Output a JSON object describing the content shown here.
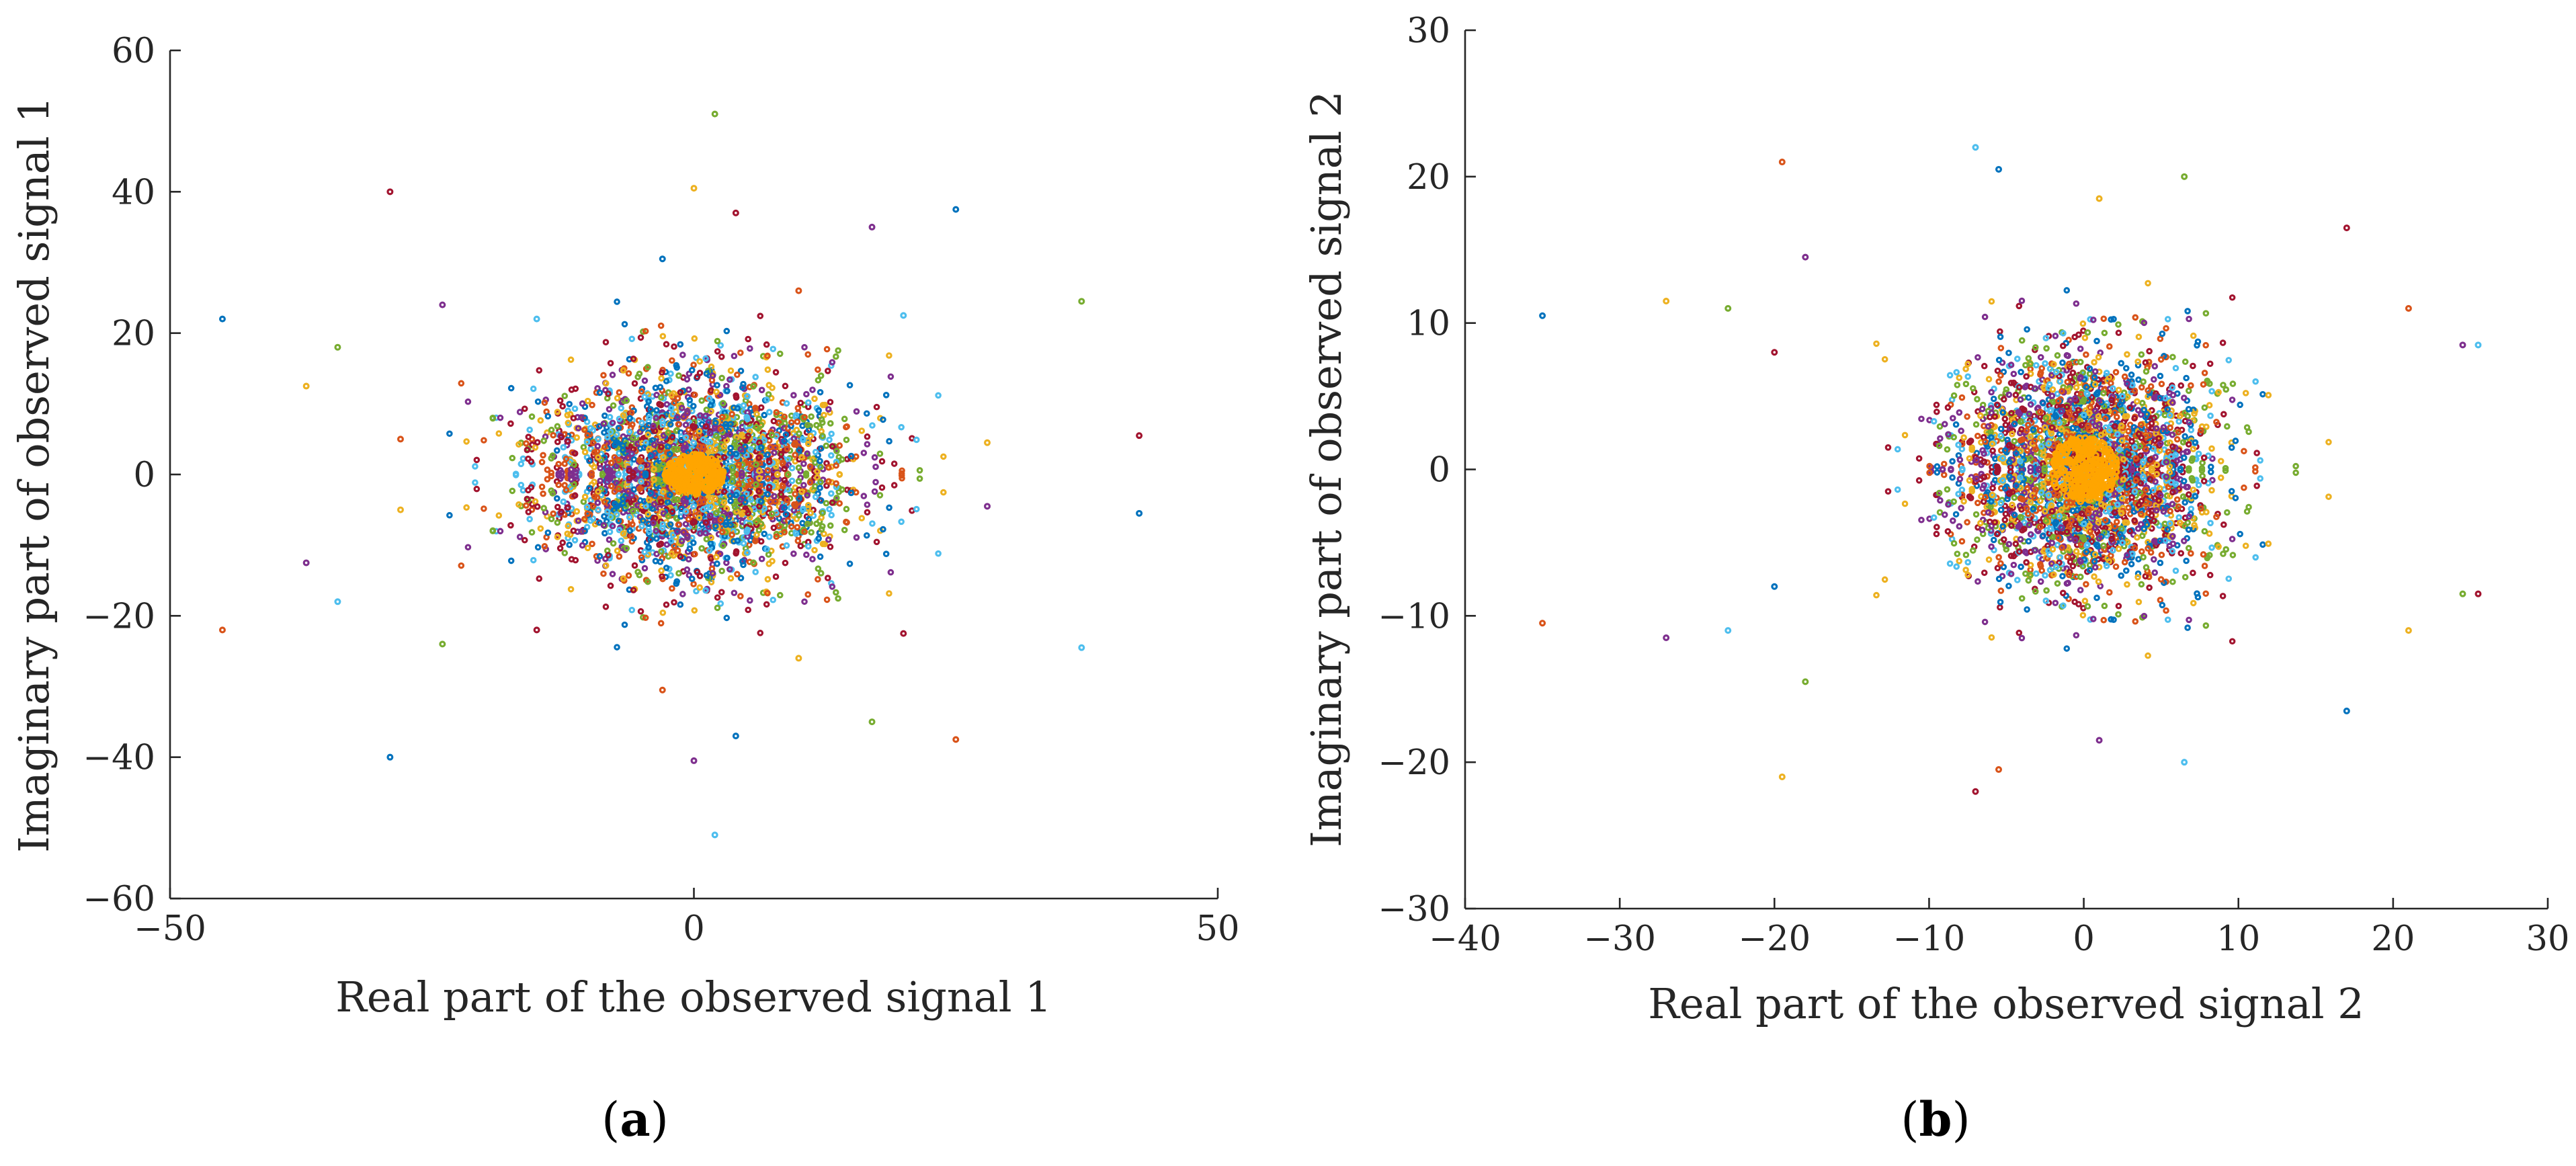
{
  "chart_data": [
    {
      "type": "scatter",
      "panel_label": "a",
      "title": "",
      "xlabel": "Real part of the observed signal 1",
      "ylabel": "Imaginary part of observed signal 1",
      "xlim": [
        -50,
        50
      ],
      "ylim": [
        -60,
        60
      ],
      "xticks": [
        -50,
        0,
        50
      ],
      "yticks": [
        -60,
        -40,
        -20,
        0,
        20,
        40,
        60
      ],
      "xtick_labels": [
        "−50",
        "0",
        "50"
      ],
      "ytick_labels": [
        "−60",
        "−40",
        "−20",
        "0",
        "20",
        "40",
        "60"
      ],
      "grid": false,
      "legend": "none",
      "colors": [
        "#0072BD",
        "#D95319",
        "#EDB120",
        "#7E2F8E",
        "#77AC30",
        "#4DBEEE",
        "#A2142F"
      ],
      "highlight_color": "#FFA500",
      "points": [
        [
          -45,
          22
        ],
        [
          -45,
          -22
        ],
        [
          -37,
          12.5
        ],
        [
          -37,
          -12.5
        ],
        [
          -34,
          18
        ],
        [
          -34,
          -18
        ],
        [
          -29,
          40
        ],
        [
          -29,
          -40
        ],
        [
          -28,
          5
        ],
        [
          -28,
          -5
        ],
        [
          -24,
          24
        ],
        [
          -24,
          -24
        ],
        [
          -15,
          22
        ],
        [
          -15,
          -22
        ],
        [
          -3,
          30.5
        ],
        [
          -3,
          -30.5
        ],
        [
          0,
          40.5
        ],
        [
          0,
          -40.5
        ],
        [
          2,
          51
        ],
        [
          2,
          -51
        ],
        [
          4,
          37
        ],
        [
          4,
          -37
        ],
        [
          10,
          26
        ],
        [
          10,
          -26
        ],
        [
          17,
          35
        ],
        [
          17,
          -35
        ],
        [
          20,
          22.5
        ],
        [
          20,
          -22.5
        ],
        [
          25,
          37.5
        ],
        [
          25,
          -37.5
        ],
        [
          28,
          4.5
        ],
        [
          28,
          -4.5
        ],
        [
          37,
          24.5
        ],
        [
          37,
          -24.5
        ],
        [
          42.5,
          5.5
        ],
        [
          42.5,
          -5.5
        ]
      ]
    },
    {
      "type": "scatter",
      "panel_label": "b",
      "title": "",
      "xlabel": "Real part of the observed signal 2",
      "ylabel": "Imaginary part of observed signal 2",
      "xlim": [
        -40,
        30
      ],
      "ylim": [
        -30,
        30
      ],
      "xticks": [
        -40,
        -30,
        -20,
        -10,
        0,
        10,
        20,
        30
      ],
      "yticks": [
        -30,
        -20,
        -10,
        0,
        10,
        20,
        30
      ],
      "xtick_labels": [
        "−40",
        "−30",
        "−20",
        "−10",
        "0",
        "10",
        "20",
        "30"
      ],
      "ytick_labels": [
        "−30",
        "−20",
        "−10",
        "0",
        "10",
        "20",
        "30"
      ],
      "grid": false,
      "legend": "none",
      "colors": [
        "#0072BD",
        "#D95319",
        "#EDB120",
        "#7E2F8E",
        "#77AC30",
        "#4DBEEE",
        "#A2142F"
      ],
      "highlight_color": "#FFA500",
      "points": [
        [
          -35,
          10.5
        ],
        [
          -35,
          -10.5
        ],
        [
          -27,
          11.5
        ],
        [
          -27,
          -11.5
        ],
        [
          -23,
          11
        ],
        [
          -23,
          -11
        ],
        [
          -20,
          8
        ],
        [
          -20,
          -8
        ],
        [
          -19.5,
          21
        ],
        [
          -19.5,
          -21
        ],
        [
          -18,
          14.5
        ],
        [
          -18,
          -14.5
        ],
        [
          -7,
          22
        ],
        [
          -7,
          -22
        ],
        [
          -5.5,
          20.5
        ],
        [
          -5.5,
          -20.5
        ],
        [
          1,
          18.5
        ],
        [
          1,
          -18.5
        ],
        [
          6.5,
          20
        ],
        [
          6.5,
          -20
        ],
        [
          17,
          16.5
        ],
        [
          17,
          -16.5
        ],
        [
          21,
          11
        ],
        [
          21,
          -11
        ],
        [
          24.5,
          8.5
        ],
        [
          24.5,
          -8.5
        ],
        [
          25.5,
          8.5
        ],
        [
          25.5,
          -8.5
        ]
      ]
    }
  ]
}
